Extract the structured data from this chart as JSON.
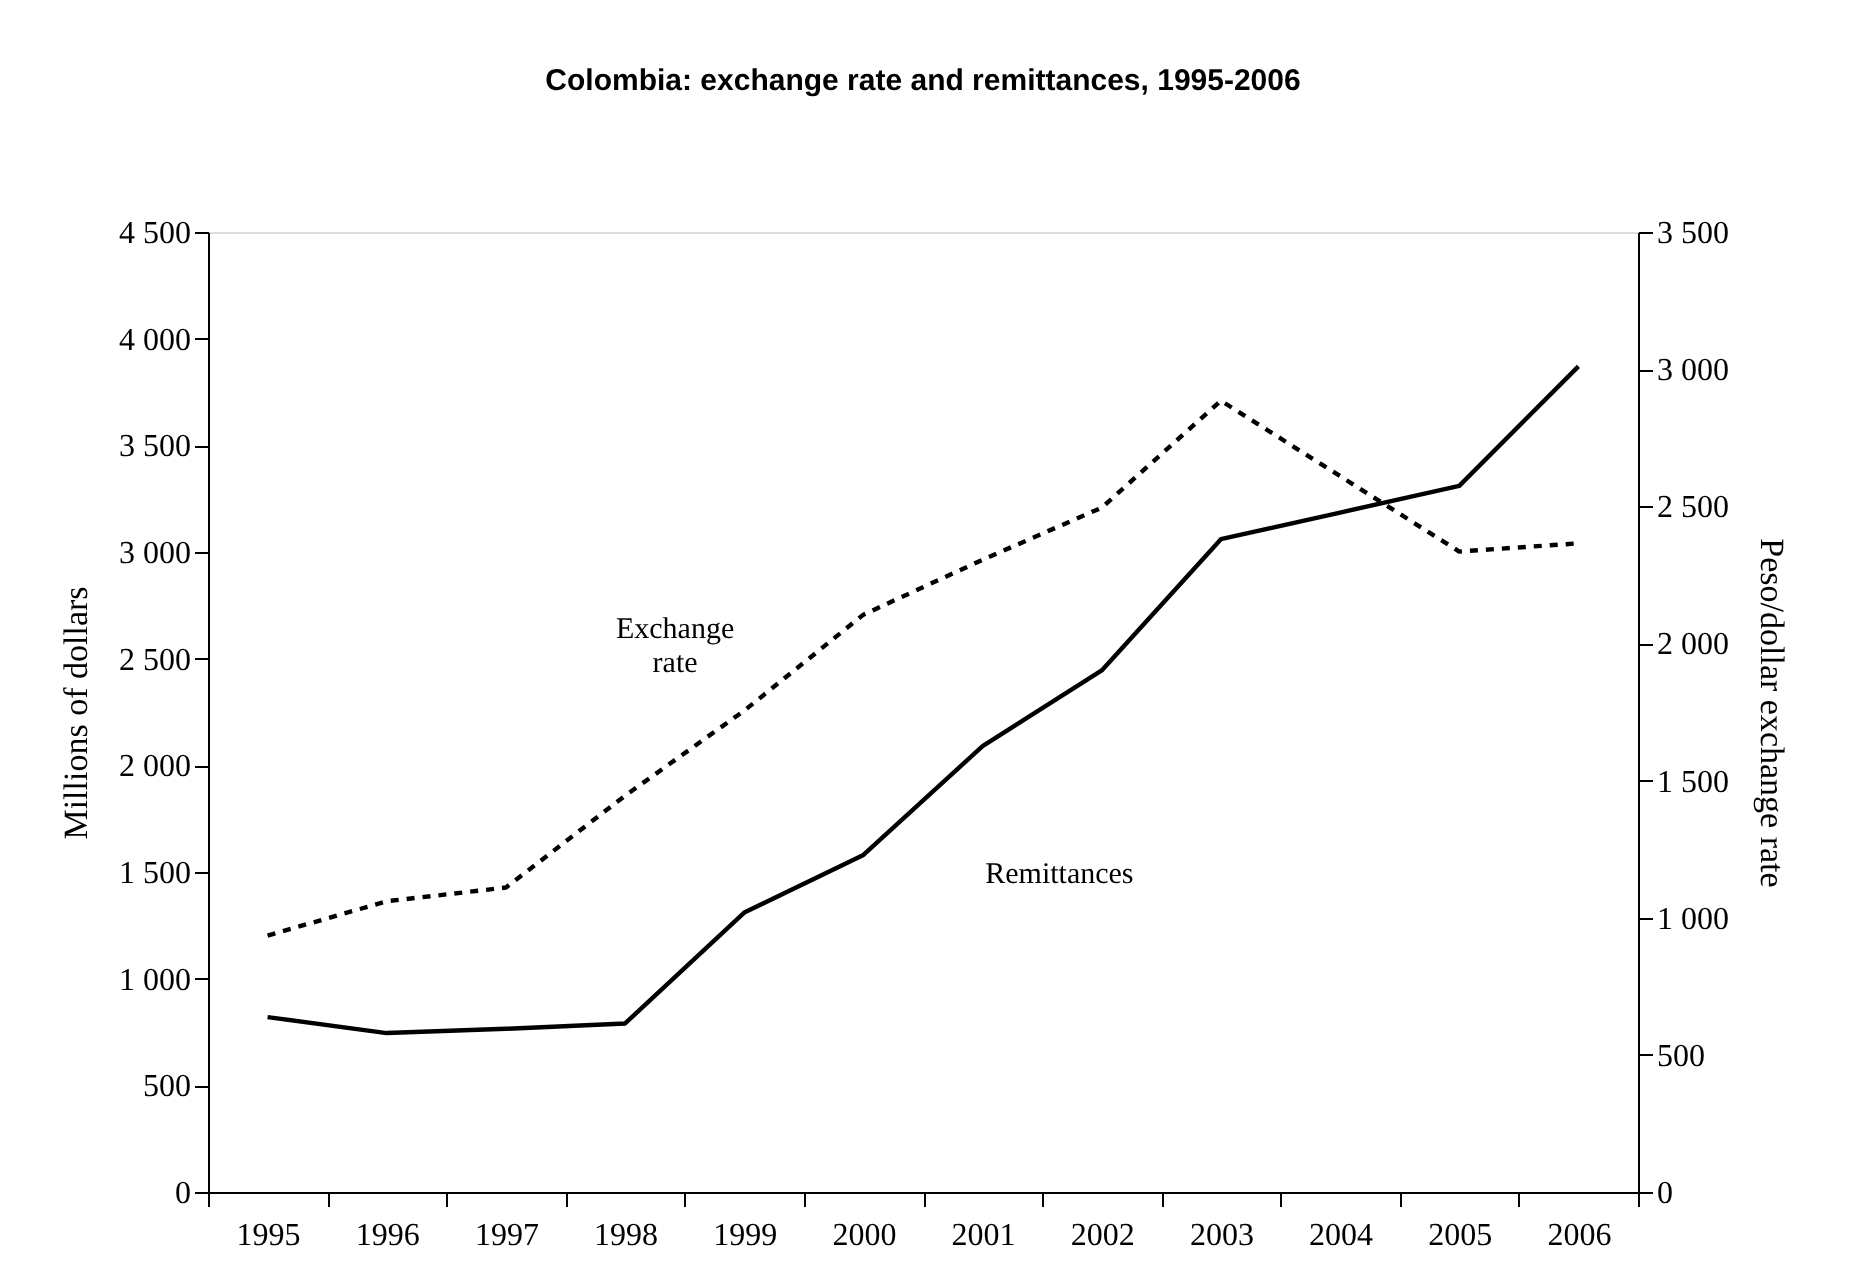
{
  "chart_data": {
    "type": "line",
    "title": "Colombia: exchange rate and remittances, 1995-2006",
    "ylabel": "Millions of dollars",
    "y2label": "Peso/dollar exchange rate",
    "categories": [
      "1995",
      "1996",
      "1997",
      "1998",
      "1999",
      "2000",
      "2001",
      "2002",
      "2003",
      "2004",
      "2005",
      "2006"
    ],
    "series": [
      {
        "name": "Remittances",
        "color": "#000000",
        "line_style": "solid",
        "values": [
          820,
          745,
          765,
          790,
          1310,
          1580,
          2090,
          2445,
          3060,
          3185,
          3310,
          3870
        ]
      },
      {
        "name": "Exchange rate",
        "color": "#000000",
        "line_style": "dashed",
        "axis": "y2",
        "values": [
          935,
          1060,
          1110,
          1445,
          1755,
          2105,
          2305,
          2495,
          2885,
          2610,
          2335,
          2365
        ]
      }
    ],
    "ylim": [
      0,
      4500
    ],
    "yticks": [
      0,
      500,
      {
        "value": 1000,
        "label": "1 000"
      },
      {
        "value": 1500,
        "label": "1 500"
      },
      {
        "value": 2000,
        "label": "2 000"
      },
      {
        "value": 2500,
        "label": "2 500"
      },
      {
        "value": 3000,
        "label": "3 000"
      },
      {
        "value": 3500,
        "label": "3 500"
      },
      {
        "value": 4000,
        "label": "4 000"
      },
      {
        "value": 4500,
        "label": "4 500"
      }
    ],
    "y2lim": [
      0,
      3500
    ],
    "y2ticks": [
      0,
      500,
      {
        "value": 1000,
        "label": "1 000"
      },
      {
        "value": 1500,
        "label": "1 500"
      },
      {
        "value": 2000,
        "label": "2 000"
      },
      {
        "value": 2500,
        "label": "2 500"
      },
      {
        "value": 3000,
        "label": "3 000"
      },
      {
        "value": 3500,
        "label": "3 500"
      }
    ],
    "grid": false,
    "marker": "none"
  }
}
